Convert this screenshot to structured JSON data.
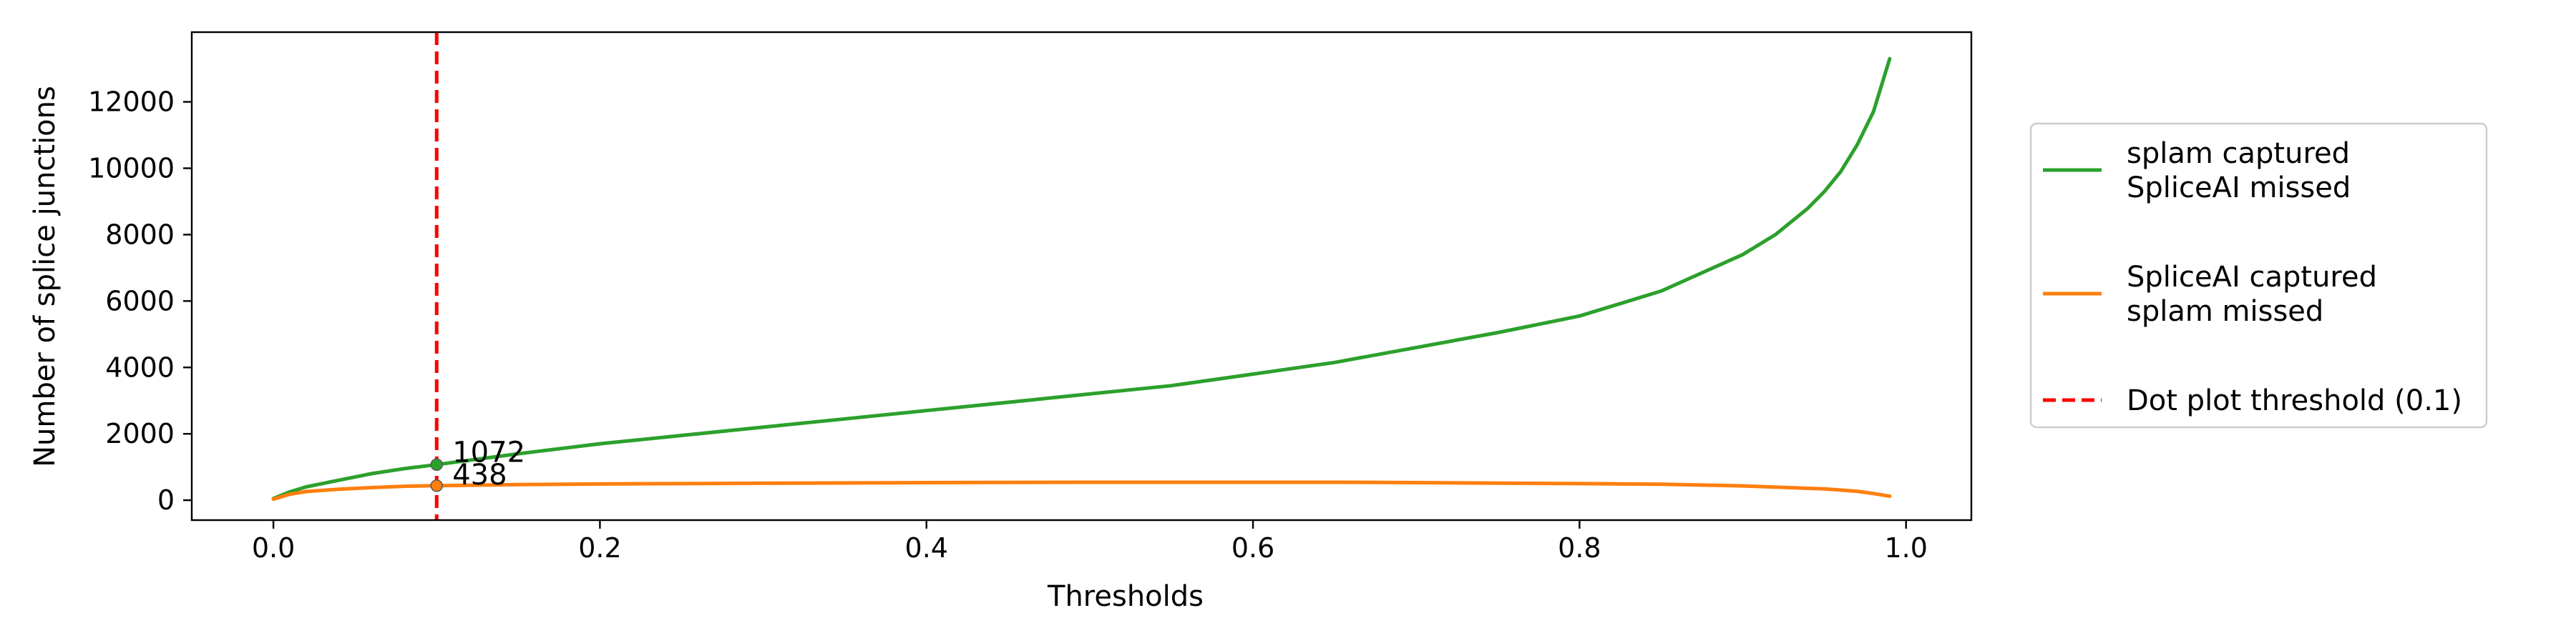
{
  "chart_data": {
    "type": "line",
    "title": "",
    "xlabel": "Thresholds",
    "ylabel": "Number of splice junctions",
    "xlim": [
      -0.05,
      1.04
    ],
    "ylim": [
      -600,
      14100
    ],
    "xticks": [
      0.0,
      0.2,
      0.4,
      0.6,
      0.8,
      1.0
    ],
    "xtick_labels": [
      "0.0",
      "0.2",
      "0.4",
      "0.6",
      "0.8",
      "1.0"
    ],
    "yticks": [
      0,
      2000,
      4000,
      6000,
      8000,
      10000,
      12000
    ],
    "ytick_labels": [
      "0",
      "2000",
      "4000",
      "6000",
      "8000",
      "10000",
      "12000"
    ],
    "grid": false,
    "legend_position": "outside-right",
    "series": [
      {
        "name": "splam captured\nSpliceAI missed",
        "legend_lines": [
          "splam captured",
          "SpliceAI missed"
        ],
        "color": "#2ca02c",
        "style": "solid",
        "x": [
          0.0,
          0.01,
          0.02,
          0.04,
          0.06,
          0.08,
          0.1,
          0.15,
          0.2,
          0.25,
          0.3,
          0.35,
          0.4,
          0.45,
          0.5,
          0.55,
          0.6,
          0.65,
          0.7,
          0.75,
          0.8,
          0.85,
          0.9,
          0.92,
          0.94,
          0.95,
          0.96,
          0.97,
          0.98,
          0.99
        ],
        "y": [
          50,
          250,
          400,
          600,
          800,
          950,
          1072,
          1400,
          1700,
          1950,
          2200,
          2450,
          2700,
          2950,
          3200,
          3450,
          3800,
          4150,
          4600,
          5050,
          5550,
          6300,
          7400,
          8000,
          8800,
          9300,
          9900,
          10700,
          11700,
          13300
        ]
      },
      {
        "name": "SpliceAI captured\nsplam missed",
        "legend_lines": [
          "SpliceAI captured",
          "splam missed"
        ],
        "color": "#ff7f0e",
        "style": "solid",
        "x": [
          0.0,
          0.01,
          0.02,
          0.04,
          0.06,
          0.08,
          0.1,
          0.15,
          0.2,
          0.3,
          0.4,
          0.5,
          0.6,
          0.65,
          0.7,
          0.8,
          0.85,
          0.9,
          0.95,
          0.97,
          0.98,
          0.99
        ],
        "y": [
          30,
          180,
          260,
          330,
          380,
          420,
          438,
          470,
          490,
          510,
          530,
          540,
          540,
          540,
          530,
          500,
          480,
          430,
          340,
          270,
          200,
          120
        ]
      }
    ],
    "threshold_line": {
      "name": "Dot plot threshold (0.1)",
      "x": 0.1,
      "color": "#ff0000",
      "style": "dashed"
    },
    "annotations": [
      {
        "x": 0.1,
        "y": 1072,
        "text": "1072",
        "marker_color": "#2ca02c"
      },
      {
        "x": 0.1,
        "y": 438,
        "text": "438",
        "marker_color": "#ff7f0e"
      }
    ]
  }
}
